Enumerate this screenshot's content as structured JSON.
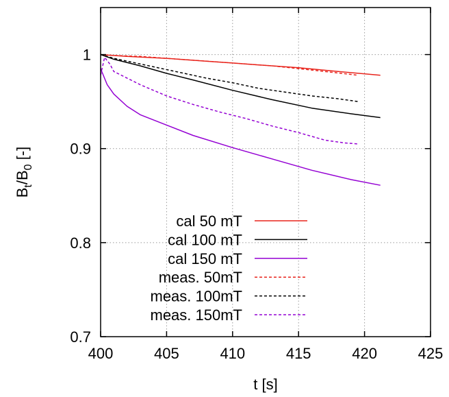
{
  "chart_data": {
    "type": "line",
    "xlabel": "t [s]",
    "ylabel": {
      "base": "B",
      "sub1": "t",
      "mid": "/B",
      "sub2": "0",
      "tail": " [-]"
    },
    "xlim": [
      400,
      425
    ],
    "ylim": [
      0.7,
      1.05
    ],
    "xticks": [
      400,
      405,
      410,
      415,
      420,
      425
    ],
    "yticks": [
      0.7,
      0.8,
      0.9,
      1.0
    ],
    "xtick_labels": [
      "400",
      "405",
      "410",
      "415",
      "420",
      "425"
    ],
    "ytick_labels": [
      "0.7",
      "0.8",
      "0.9",
      "1"
    ],
    "grid": true,
    "legend_position": "bottom-left",
    "series": [
      {
        "name": "cal 50 mT",
        "color": "#e8231b",
        "dash": "solid",
        "x": [
          400,
          402,
          405,
          408,
          410,
          412,
          415,
          418,
          421.2
        ],
        "y": [
          1.0,
          0.998,
          0.996,
          0.993,
          0.991,
          0.989,
          0.986,
          0.982,
          0.978
        ]
      },
      {
        "name": "cal 100 mT",
        "color": "#000000",
        "dash": "solid",
        "x": [
          400,
          401,
          403,
          405,
          407,
          410,
          413,
          416,
          419,
          421.2
        ],
        "y": [
          1.0,
          0.995,
          0.988,
          0.98,
          0.973,
          0.962,
          0.952,
          0.943,
          0.937,
          0.933
        ]
      },
      {
        "name": "cal 150 mT",
        "color": "#9400d3",
        "dash": "solid",
        "x": [
          400,
          400.5,
          401,
          402,
          403,
          405,
          407,
          410,
          413,
          416,
          419,
          421.2
        ],
        "y": [
          0.985,
          0.968,
          0.958,
          0.945,
          0.936,
          0.925,
          0.914,
          0.901,
          0.889,
          0.877,
          0.867,
          0.861
        ]
      },
      {
        "name": "meas. 50mT",
        "color": "#e8231b",
        "dash": "dashed",
        "x": [
          400,
          401,
          403,
          405,
          407,
          409,
          411,
          413,
          415,
          417,
          419.5
        ],
        "y": [
          1.0,
          0.999,
          0.998,
          0.996,
          0.994,
          0.992,
          0.99,
          0.988,
          0.985,
          0.982,
          0.978
        ]
      },
      {
        "name": "meas. 100mT",
        "color": "#000000",
        "dash": "dashed",
        "x": [
          400,
          401,
          402,
          404,
          406,
          408,
          410,
          412,
          414,
          416,
          418,
          419.5
        ],
        "y": [
          1.0,
          0.996,
          0.993,
          0.987,
          0.981,
          0.975,
          0.97,
          0.964,
          0.96,
          0.956,
          0.953,
          0.95
        ]
      },
      {
        "name": "meas. 150mT",
        "color": "#9400d3",
        "dash": "dashed",
        "x": [
          400,
          400.3,
          400.7,
          401,
          402,
          403,
          405,
          407,
          409,
          411,
          413,
          415,
          417,
          418.5,
          419.5
        ],
        "y": [
          0.978,
          0.997,
          0.99,
          0.982,
          0.975,
          0.968,
          0.956,
          0.947,
          0.939,
          0.932,
          0.924,
          0.917,
          0.909,
          0.906,
          0.905
        ]
      }
    ]
  }
}
